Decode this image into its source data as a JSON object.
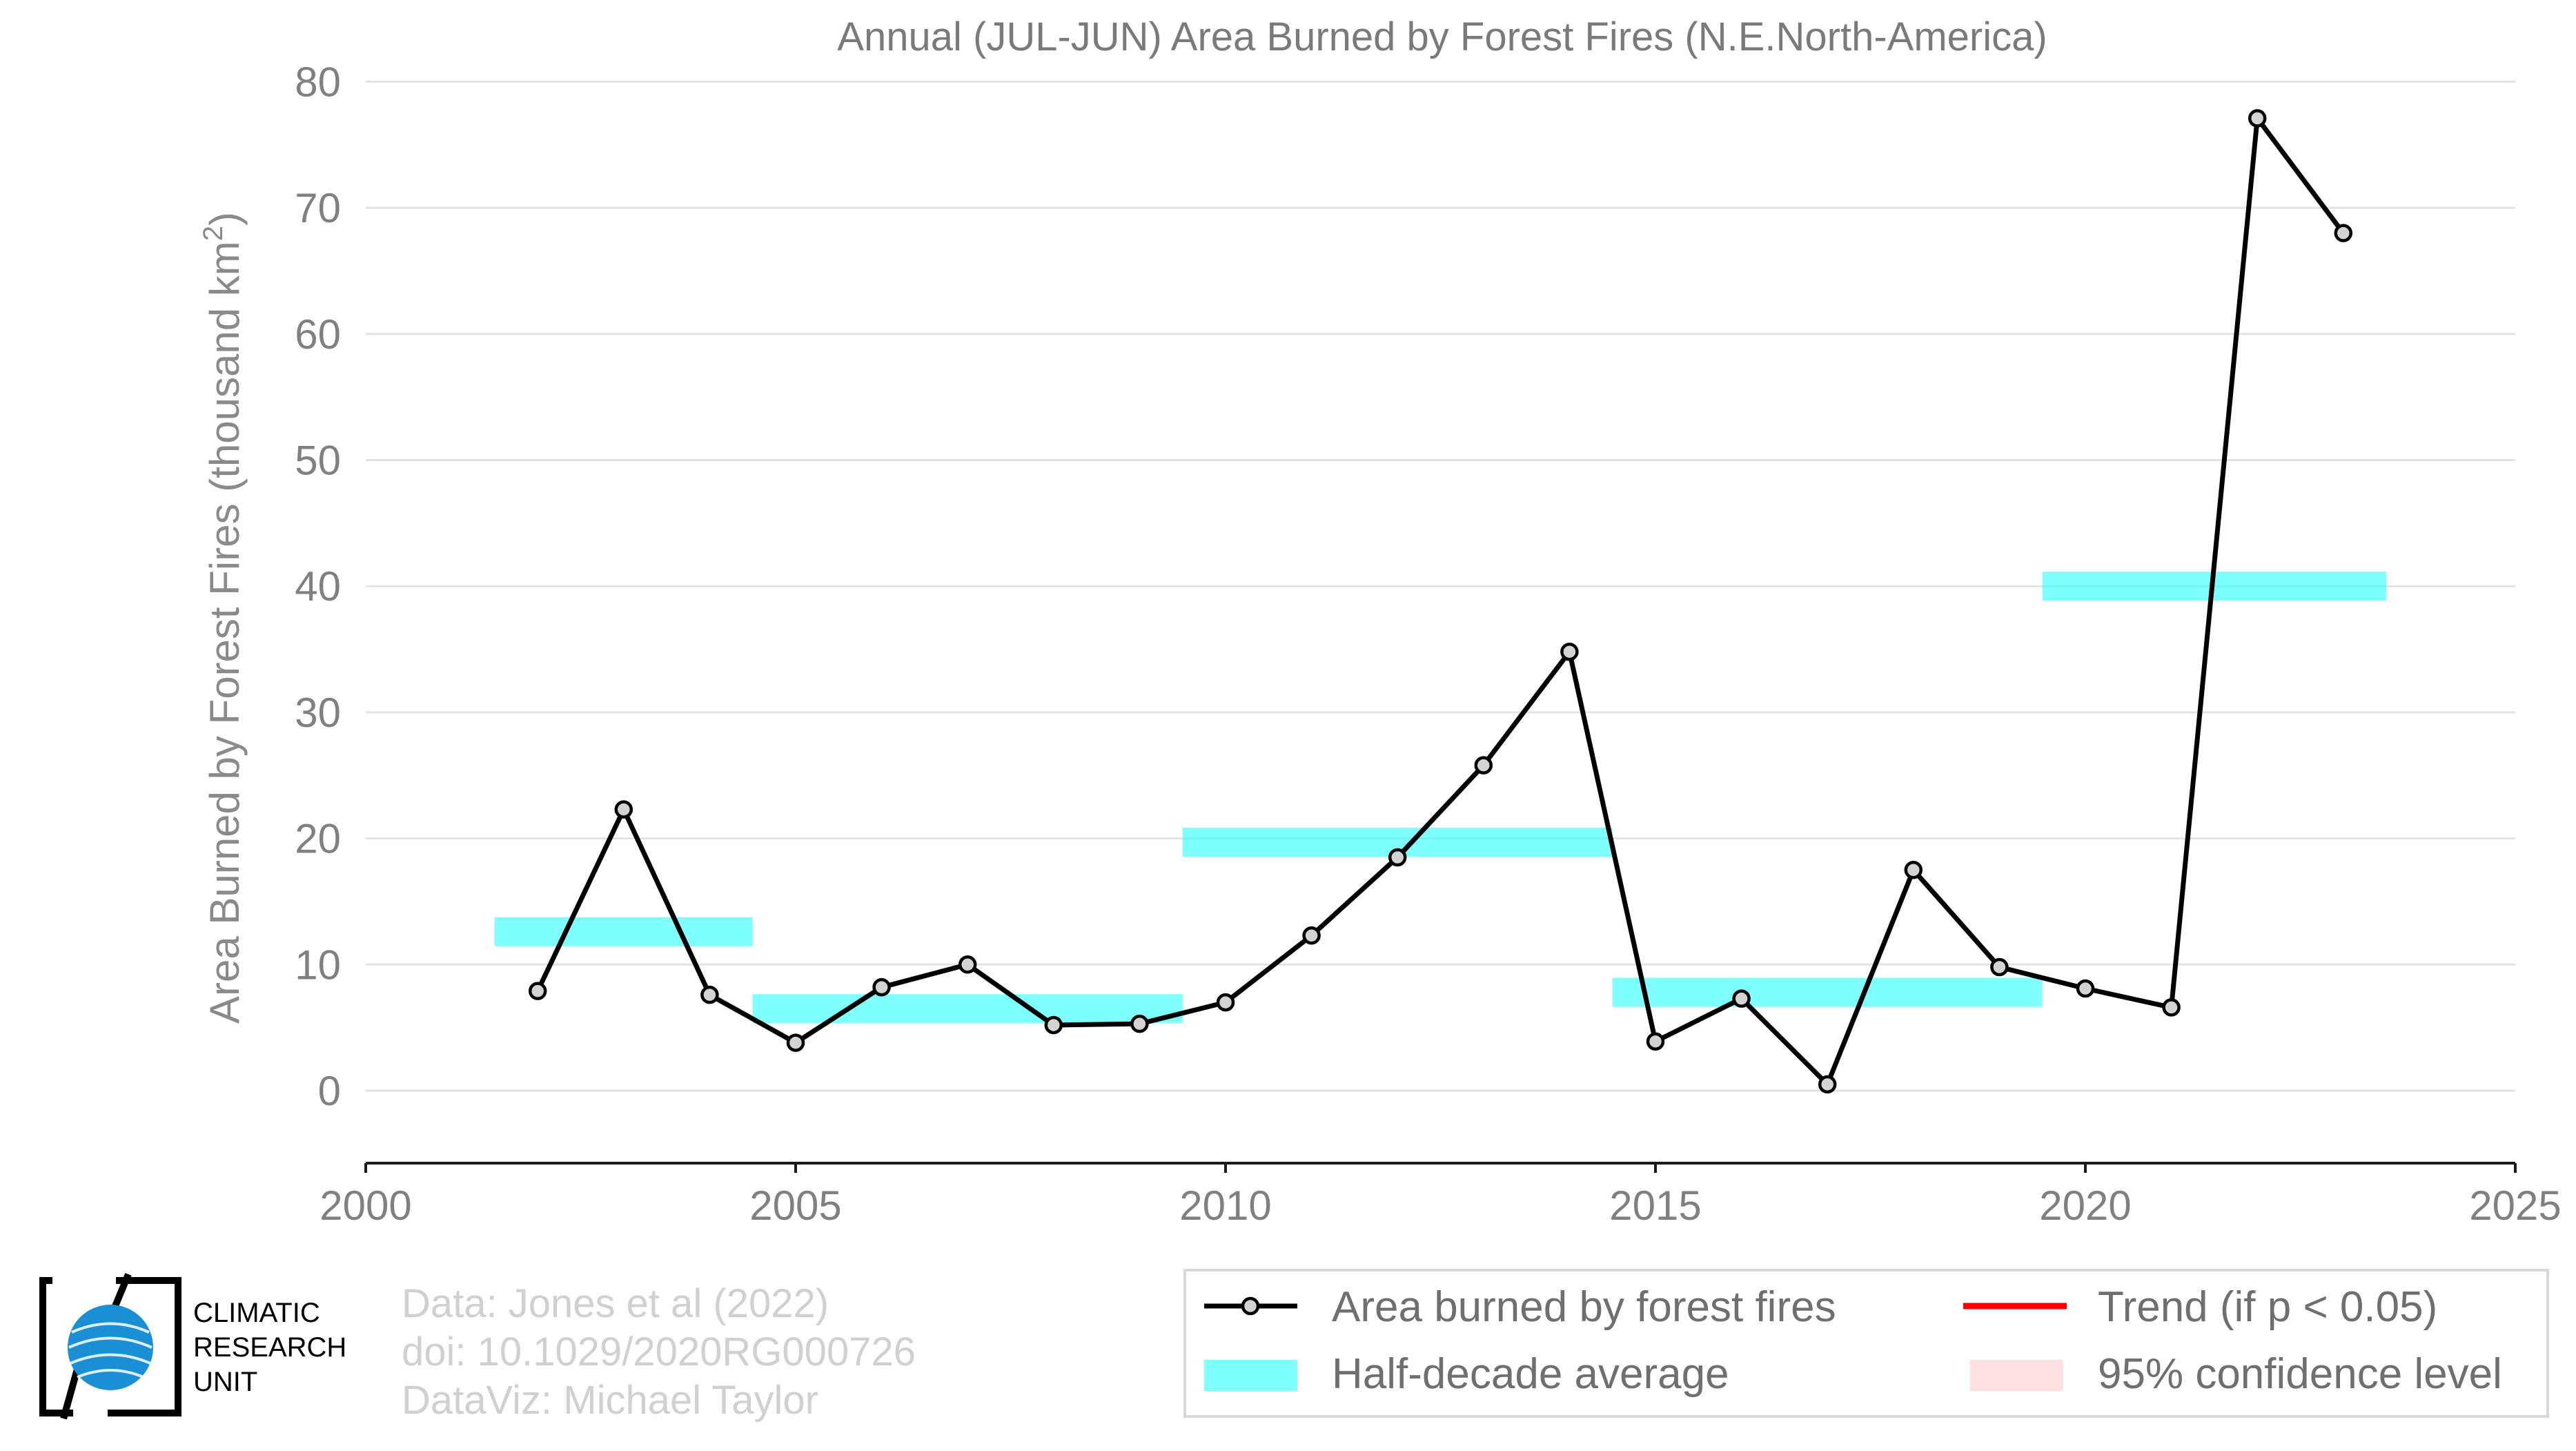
{
  "chart_data": {
    "type": "line",
    "title": "Annual (JUL-JUN) Area Burned by Forest Fires (N.E.North-America)",
    "ylabel": "Area Burned by Forest Fires (thousand km",
    "ylabel_sup": "2",
    "ylabel_end": ")",
    "xlim": [
      2000,
      2025
    ],
    "ylim": [
      -6,
      80
    ],
    "xticks": [
      2000,
      2005,
      2010,
      2015,
      2020,
      2025
    ],
    "yticks": [
      0,
      10,
      20,
      30,
      40,
      50,
      60,
      70,
      80
    ],
    "grid": true,
    "series": [
      {
        "name": "Area burned by forest fires",
        "x": [
          2002,
          2003,
          2004,
          2005,
          2006,
          2007,
          2008,
          2009,
          2010,
          2011,
          2012,
          2013,
          2014,
          2015,
          2016,
          2017,
          2018,
          2019,
          2020,
          2021,
          2022,
          2023
        ],
        "y": [
          7.9,
          22.3,
          7.6,
          3.8,
          8.2,
          10.0,
          5.2,
          5.3,
          7.0,
          12.3,
          18.5,
          25.8,
          34.8,
          3.9,
          7.3,
          0.5,
          17.5,
          9.8,
          8.1,
          6.6,
          77.1,
          68.0
        ],
        "color": "#000000"
      },
      {
        "name": "Half-decade average",
        "segments": [
          {
            "x0": 2001.5,
            "x1": 2004.5,
            "y": 12.6
          },
          {
            "x0": 2004.5,
            "x1": 2009.5,
            "y": 6.5
          },
          {
            "x0": 2009.5,
            "x1": 2014.5,
            "y": 19.7
          },
          {
            "x0": 2014.5,
            "x1": 2019.5,
            "y": 7.8
          },
          {
            "x0": 2019.5,
            "x1": 2023.5,
            "y": 40.0
          }
        ],
        "color": "#00ffff"
      }
    ],
    "legend": {
      "placement": "bottom-right",
      "items": [
        {
          "label": "Area burned by forest fires",
          "kind": "line-marker",
          "color": "#000000"
        },
        {
          "label": "Trend (if p < 0.05)",
          "kind": "line",
          "color": "#ff0000"
        },
        {
          "label": "Half-decade average",
          "kind": "band",
          "color": "#00ffff"
        },
        {
          "label": "95% confidence level",
          "kind": "band",
          "color": "#ffcccc"
        }
      ]
    }
  },
  "credits": [
    "Data: Jones et al (2022)",
    "doi: 10.1029/2020RG000726",
    "DataViz: Michael Taylor"
  ],
  "logo": {
    "lines": [
      "CLIMATIC",
      "RESEARCH",
      "UNIT"
    ],
    "icon": "globe-icon",
    "accent": "#1a8fd6"
  }
}
